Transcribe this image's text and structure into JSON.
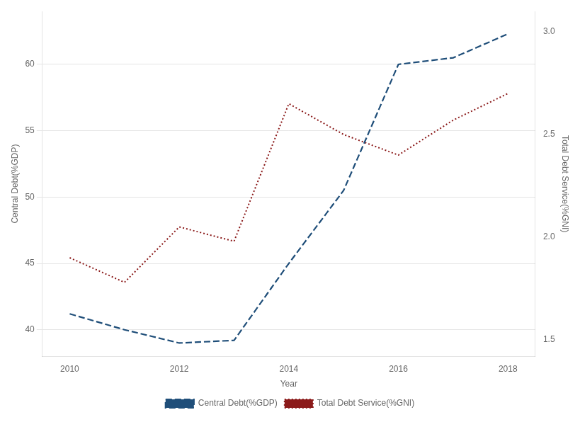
{
  "chart_data": {
    "type": "line",
    "x": [
      2010,
      2011,
      2012,
      2013,
      2014,
      2015,
      2016,
      2017,
      2018
    ],
    "series": [
      {
        "name": "Central Debt(%GDP)",
        "color": "#1f4e79",
        "line_style": "dashed",
        "values": [
          41.2,
          40.0,
          39.0,
          39.2,
          45.0,
          50.5,
          60.0,
          60.5,
          62.3
        ]
      },
      {
        "name": "Total Debt Service(%GNI)",
        "color": "#8B1A1A",
        "line_style": "dotted",
        "axis": "y2",
        "values": [
          1.9,
          1.78,
          2.05,
          1.98,
          2.65,
          2.5,
          2.4,
          2.57,
          2.7
        ]
      }
    ],
    "xlabel": "Year",
    "ylabel": "Central Debt(%GDP)",
    "y2label": "Total Debt Service(%GNI)",
    "xlim": [
      2009.5,
      2018.5
    ],
    "xticks": [
      2010,
      2012,
      2014,
      2016,
      2018
    ],
    "ylim": [
      38,
      64
    ],
    "yticks": [
      40,
      45,
      50,
      55,
      60
    ],
    "y2lim": [
      1.42,
      3.1
    ],
    "y2ticks": [
      1.5,
      {
        "value": 2,
        "label": "2.0"
      },
      2.5,
      {
        "value": 3,
        "label": "3.0"
      }
    ],
    "grid": true,
    "legend": "bottom"
  }
}
